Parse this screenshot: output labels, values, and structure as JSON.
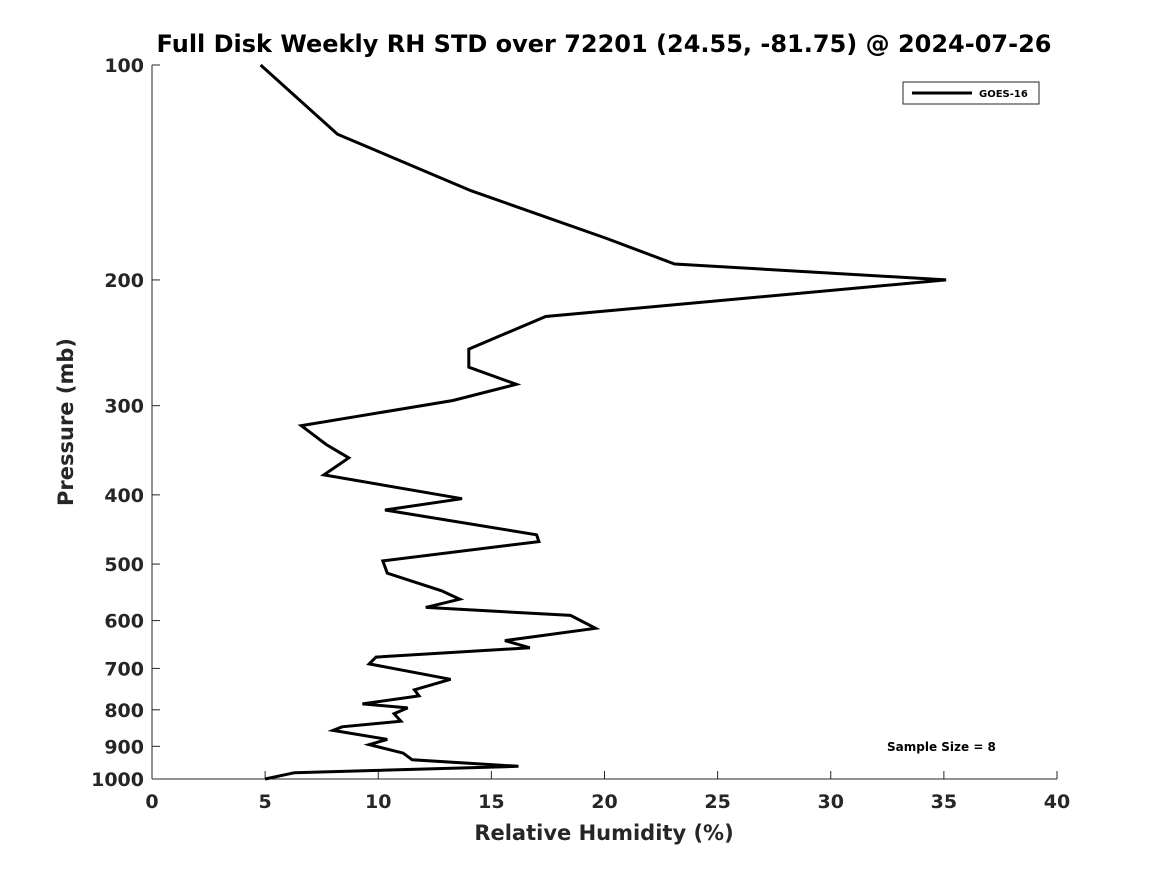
{
  "chart_data": {
    "type": "line",
    "title": "Full Disk Weekly RH STD over 72201 (24.55, -81.75) @ 2024-07-26",
    "xlabel": "Relative Humidity (%)",
    "ylabel": "Pressure (mb)",
    "xlim": [
      0,
      40
    ],
    "ylim": [
      100,
      1000
    ],
    "yscale": "log",
    "y_reversed": true,
    "x_ticks": [
      0,
      5,
      10,
      15,
      20,
      25,
      30,
      35,
      40
    ],
    "x_tick_labels": [
      "0",
      "5",
      "10",
      "15",
      "20",
      "25",
      "30",
      "35",
      "40"
    ],
    "y_ticks": [
      100,
      200,
      300,
      400,
      500,
      600,
      700,
      800,
      900,
      1000
    ],
    "y_tick_labels": [
      "100",
      "200",
      "300",
      "400",
      "500",
      "600",
      "700",
      "800",
      "900",
      "1000"
    ],
    "grid": false,
    "legend": {
      "position": "top-right",
      "entries": [
        "GOES-16"
      ]
    },
    "annotation": "Sample Size = 8",
    "series": [
      {
        "name": "GOES-16",
        "color": "#000000",
        "points": [
          [
            4.8,
            100
          ],
          [
            8.2,
            125
          ],
          [
            14.1,
            150
          ],
          [
            20.1,
            175
          ],
          [
            23.1,
            190
          ],
          [
            35.1,
            200
          ],
          [
            17.4,
            225
          ],
          [
            14.0,
            250
          ],
          [
            14.0,
            265
          ],
          [
            16.1,
            280
          ],
          [
            13.3,
            295
          ],
          [
            6.6,
            320
          ],
          [
            7.7,
            340
          ],
          [
            8.7,
            355
          ],
          [
            7.6,
            375
          ],
          [
            13.7,
            405
          ],
          [
            10.3,
            420
          ],
          [
            17.0,
            455
          ],
          [
            17.1,
            465
          ],
          [
            10.2,
            495
          ],
          [
            10.4,
            515
          ],
          [
            12.8,
            545
          ],
          [
            13.6,
            560
          ],
          [
            12.1,
            575
          ],
          [
            18.5,
            590
          ],
          [
            19.6,
            615
          ],
          [
            15.6,
            640
          ],
          [
            16.7,
            655
          ],
          [
            9.9,
            675
          ],
          [
            9.6,
            690
          ],
          [
            13.2,
            725
          ],
          [
            11.6,
            750
          ],
          [
            11.8,
            765
          ],
          [
            9.3,
            785
          ],
          [
            11.3,
            795
          ],
          [
            10.7,
            810
          ],
          [
            11.0,
            830
          ],
          [
            8.4,
            845
          ],
          [
            8.0,
            855
          ],
          [
            10.4,
            880
          ],
          [
            9.6,
            895
          ],
          [
            11.1,
            920
          ],
          [
            11.5,
            940
          ],
          [
            16.2,
            960
          ],
          [
            6.3,
            980
          ],
          [
            5.0,
            1000
          ]
        ]
      }
    ]
  }
}
